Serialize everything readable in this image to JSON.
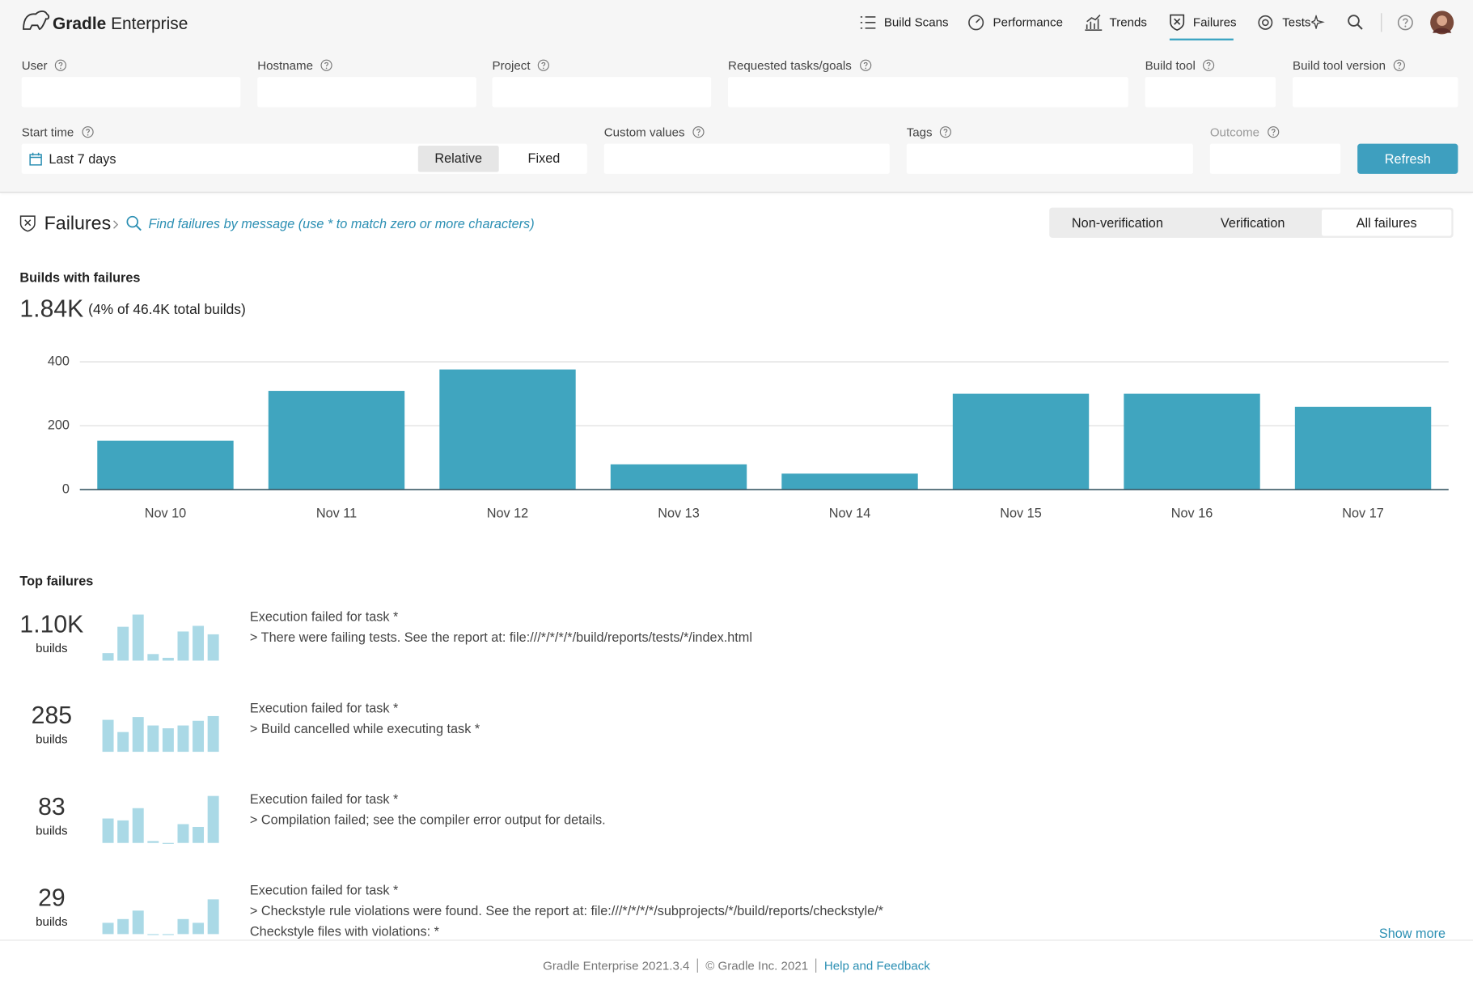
{
  "header": {
    "brand_bold": "Gradle",
    "brand": "Enterprise",
    "nav": [
      "Build Scans",
      "Performance",
      "Trends",
      "Failures",
      "Tests"
    ]
  },
  "filters": {
    "labels": [
      "User",
      "Hostname",
      "Project",
      "Requested tasks/goals",
      "Build tool",
      "Build tool version",
      "Start time",
      "Custom values",
      "Tags",
      "Outcome"
    ],
    "start_time": "Last 7 days",
    "modes": [
      "Relative",
      "Fixed"
    ],
    "refresh": "Refresh"
  },
  "failures": {
    "title": "Failures",
    "search": "Find failures by message (use * to match zero or more characters)",
    "tabs": [
      "Non-verification",
      "Verification",
      "All failures"
    ],
    "summary_title": "Builds with failures",
    "total": "1.84K",
    "total_note": "(4% of 46.4K total builds)"
  },
  "chart_data": {
    "type": "bar",
    "categories": [
      "Nov 10",
      "Nov 11",
      "Nov 12",
      "Nov 13",
      "Nov 14",
      "Nov 15",
      "Nov 16",
      "Nov 17"
    ],
    "values": [
      153,
      309,
      376,
      79,
      50,
      300,
      300,
      259
    ],
    "color": "#40a5bf",
    "ylim": [
      0,
      400
    ],
    "yticks": [
      0,
      200,
      400
    ],
    "grid": true
  },
  "top_failures": {
    "title": "Top failures",
    "spark_color": "#aad9e6",
    "spark_ylim": [
      0,
      50
    ],
    "items": [
      {
        "count": "1.10K",
        "unit": "builds",
        "lines": [
          "Execution failed for task *",
          "> There were failing tests. See the report at: file:///*/*/*/*/build/reports/tests/*/index.html"
        ],
        "spark": [
          8,
          36,
          49,
          7,
          3,
          31,
          37,
          28
        ]
      },
      {
        "count": "285",
        "unit": "builds",
        "lines": [
          "Execution failed for task *",
          "> Build cancelled while executing task *"
        ],
        "spark": [
          34,
          21,
          37,
          28,
          25,
          28,
          33,
          38
        ]
      },
      {
        "count": "83",
        "unit": "builds",
        "lines": [
          "Execution failed for task *",
          "> Compilation failed; see the compiler error output for details."
        ],
        "spark": [
          26,
          24,
          37,
          2,
          0,
          20,
          17,
          50
        ]
      },
      {
        "count": "29",
        "unit": "builds",
        "lines": [
          "Execution failed for task *",
          "> Checkstyle rule violations were found. See the report at: file:///*/*/*/*/subprojects/*/build/reports/checkstyle/*",
          "Checkstyle files with violations: *"
        ],
        "spark": [
          12,
          16,
          25,
          0,
          0,
          16,
          12,
          37
        ]
      }
    ],
    "show_more": "Show more"
  },
  "footer": {
    "version": "Gradle Enterprise 2021.3.4",
    "copyright": "© Gradle Inc. 2021",
    "help": "Help and Feedback"
  }
}
